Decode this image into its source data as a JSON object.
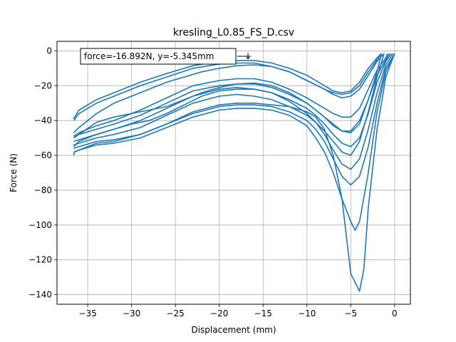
{
  "chart_data": {
    "type": "line",
    "title": "kresling_L0.85_FS_D.csv",
    "xlabel": "Displacement (mm)",
    "ylabel": "Force (N)",
    "xlim": [
      -38.5,
      1.8
    ],
    "ylim": [
      -145.5,
      5.5
    ],
    "xticks": [
      -35,
      -30,
      -25,
      -20,
      -15,
      -10,
      -5,
      0
    ],
    "yticks": [
      0,
      -20,
      -40,
      -60,
      -80,
      -100,
      -120,
      -140
    ],
    "xtick_labels": [
      "−35",
      "−30",
      "−25",
      "−20",
      "−15",
      "−10",
      "−5",
      "0"
    ],
    "ytick_labels": [
      "0",
      "−20",
      "−40",
      "−60",
      "−80",
      "−100",
      "−120",
      "−140"
    ],
    "grid": true,
    "color": "#1f77b4",
    "annotation": {
      "text": "force=-16.892N, y=-5.345mm",
      "point": [
        -16.892,
        -5.345
      ],
      "arrow_glyph": "↓"
    },
    "series": [
      {
        "x": [
          0,
          -1,
          -2,
          -3,
          -3.5,
          -4,
          -5,
          -6,
          -7,
          -8,
          -9,
          -10,
          -12,
          -14,
          -16,
          -18,
          -20,
          -23,
          -26,
          -29,
          -32,
          -34,
          -35.5,
          -36.5,
          -36.6
        ],
        "y": [
          -1.5,
          -15,
          -45,
          -90,
          -125,
          -138,
          -128,
          -85,
          -60,
          -45,
          -38,
          -35,
          -32,
          -31,
          -30,
          -30,
          -31,
          -35,
          -42,
          -48,
          -52,
          -53,
          -56,
          -58,
          -60
        ]
      },
      {
        "x": [
          0,
          -1,
          -2,
          -3,
          -4,
          -4.5,
          -5,
          -6,
          -7,
          -8,
          -9,
          -10,
          -12,
          -14,
          -16,
          -18,
          -20,
          -23,
          -26,
          -29,
          -32,
          -34,
          -36,
          -36.6
        ],
        "y": [
          -1.5,
          -12,
          -35,
          -70,
          -98,
          -103,
          -98,
          -85,
          -70,
          -58,
          -50,
          -43,
          -37,
          -34,
          -33,
          -33,
          -34,
          -38,
          -44,
          -50,
          -53,
          -54,
          -57,
          -58
        ]
      },
      {
        "x": [
          0,
          -1,
          -2,
          -3,
          -4,
          -5,
          -6,
          -7,
          -8,
          -9,
          -10,
          -12,
          -14,
          -16,
          -18,
          -20,
          -23,
          -26,
          -29,
          -32,
          -34,
          -36,
          -36.6
        ],
        "y": [
          -1.5,
          -10,
          -30,
          -55,
          -72,
          -77,
          -72,
          -62,
          -52,
          -45,
          -40,
          -35,
          -32,
          -31,
          -31,
          -32,
          -36,
          -42,
          -48,
          -51,
          -52,
          -55,
          -56
        ]
      },
      {
        "x": [
          -0.2,
          -1,
          -2,
          -3,
          -4,
          -5,
          -6,
          -7,
          -8,
          -9,
          -10,
          -12,
          -14,
          -16,
          -18,
          -20,
          -23,
          -26,
          -29,
          -32,
          -34,
          -36,
          -36.6
        ],
        "y": [
          -1.5,
          -8,
          -24,
          -45,
          -62,
          -68,
          -65,
          -57,
          -48,
          -41,
          -37,
          -32,
          -28,
          -26,
          -25,
          -26,
          -30,
          -37,
          -44,
          -48,
          -50,
          -53,
          -54
        ]
      },
      {
        "x": [
          -0.4,
          -1,
          -2,
          -3,
          -4,
          -5,
          -6,
          -7,
          -8,
          -9,
          -10,
          -12,
          -14,
          -16,
          -18,
          -20,
          -23,
          -26,
          -29,
          -32,
          -34,
          -36,
          -36.6
        ],
        "y": [
          -1.5,
          -6,
          -18,
          -36,
          -50,
          -55,
          -53,
          -48,
          -42,
          -37,
          -33,
          -28,
          -24,
          -22,
          -21,
          -22,
          -26,
          -33,
          -40,
          -45,
          -48,
          -51,
          -52
        ]
      },
      {
        "x": [
          -0.6,
          -1,
          -2,
          -3,
          -4,
          -5,
          -6,
          -7,
          -8,
          -9,
          -10,
          -12,
          -14,
          -16,
          -18,
          -20,
          -23,
          -26,
          -29,
          -32,
          -34,
          -36,
          -36.6
        ],
        "y": [
          -1.5,
          -5,
          -14,
          -28,
          -42,
          -47,
          -46,
          -42,
          -38,
          -34,
          -30,
          -25,
          -21,
          -19,
          -19,
          -20,
          -23,
          -30,
          -37,
          -42,
          -45,
          -48,
          -50
        ]
      },
      {
        "x": [
          -0.8,
          -1,
          -2,
          -3,
          -4,
          -5,
          -6,
          -7,
          -8,
          -10,
          -12,
          -14,
          -16,
          -18,
          -20,
          -23,
          -26,
          -29,
          -32,
          -34,
          -36,
          -36.6
        ],
        "y": [
          -1.5,
          -4,
          -11,
          -22,
          -33,
          -38,
          -38,
          -36,
          -33,
          -27,
          -22,
          -18,
          -16,
          -16,
          -17,
          -20,
          -27,
          -34,
          -40,
          -43,
          -47,
          -49
        ]
      },
      {
        "x": [
          -1.2,
          -2,
          -3,
          -4,
          -5,
          -6,
          -7,
          -8,
          -10,
          -12,
          -14,
          -16,
          -18,
          -20,
          -23,
          -26,
          -29,
          -32,
          -34,
          -36,
          -36.6
        ],
        "y": [
          -1.5,
          -6,
          -14,
          -22,
          -26,
          -27,
          -25,
          -22,
          -17,
          -12,
          -9,
          -7,
          -7,
          -7.5,
          -10,
          -15,
          -20,
          -26,
          -30,
          -36,
          -40
        ]
      },
      {
        "x": [
          -1.5,
          -2,
          -3,
          -4,
          -5,
          -6,
          -7,
          -8,
          -10,
          -12,
          -14,
          -16,
          -18,
          -20,
          -23,
          -26,
          -29,
          -32,
          -34,
          -36,
          -36.6
        ],
        "y": [
          -1.5,
          -4,
          -10,
          -18,
          -23,
          -24,
          -23,
          -20,
          -14,
          -10,
          -7,
          -5.5,
          -5.5,
          -6,
          -8.5,
          -13,
          -18,
          -24,
          -28,
          -34,
          -39
        ]
      },
      {
        "x": [
          -36.6,
          -36,
          -34,
          -32,
          -30,
          -28,
          -26,
          -24,
          -22,
          -20,
          -18,
          -16,
          -14,
          -12,
          -10,
          -8,
          -7,
          -6,
          -5,
          -4,
          -3,
          -2,
          -1.5
        ],
        "y": [
          -47,
          -44,
          -36,
          -30,
          -26,
          -22,
          -18,
          -15,
          -12,
          -10,
          -8.5,
          -8,
          -9,
          -12,
          -17,
          -22,
          -24,
          -25,
          -24,
          -20,
          -12,
          -5,
          -1.5
        ]
      },
      {
        "x": [
          -36.6,
          -36,
          -34,
          -32,
          -30,
          -28,
          -26,
          -24,
          -22,
          -20,
          -18,
          -16,
          -14,
          -12,
          -10,
          -8,
          -7,
          -6,
          -5,
          -4,
          -3,
          -2,
          -1.5
        ],
        "y": [
          -50,
          -48,
          -41,
          -38,
          -36,
          -34,
          -32,
          -28,
          -24,
          -21,
          -19,
          -18.5,
          -20,
          -24,
          -30,
          -38,
          -43,
          -46,
          -46,
          -40,
          -28,
          -12,
          -1.5
        ]
      },
      {
        "x": [
          -36.6,
          -36,
          -34,
          -32,
          -30,
          -28,
          -26,
          -24,
          -22,
          -20,
          -18,
          -16,
          -14,
          -12,
          -10,
          -8,
          -7,
          -6,
          -5,
          -4,
          -3,
          -2,
          -1.2
        ],
        "y": [
          -55,
          -52,
          -48,
          -45,
          -42,
          -40,
          -36,
          -31,
          -26,
          -23,
          -22,
          -22,
          -24,
          -29,
          -36,
          -46,
          -52,
          -58,
          -60,
          -52,
          -35,
          -15,
          -1.5
        ]
      }
    ]
  }
}
